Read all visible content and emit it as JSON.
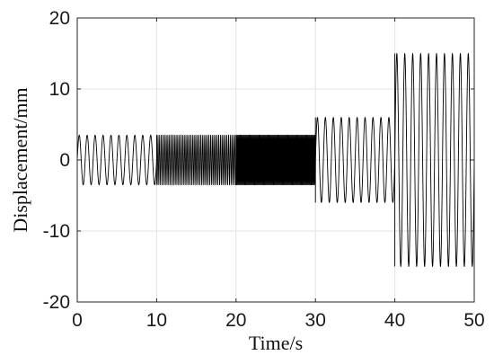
{
  "chart_data": {
    "type": "line",
    "title": "",
    "xlabel": "Time/s",
    "ylabel": "Displacement/mm",
    "xlim": [
      0,
      50
    ],
    "ylim": [
      -20,
      20
    ],
    "x_ticks": [
      0,
      10,
      20,
      30,
      40,
      50
    ],
    "y_ticks": [
      20,
      10,
      0,
      -10,
      -20
    ],
    "x_tick_labels": [
      "0",
      "10",
      "20",
      "30",
      "40",
      "50"
    ],
    "y_tick_labels": [
      "20",
      "10",
      "0",
      "-10",
      "-20"
    ],
    "grid": true,
    "legend": "none",
    "series": [
      {
        "color": "#000000",
        "segments": [
          {
            "t_start": 0,
            "t_end": 10,
            "amplitude": 3.5,
            "frequency": 1
          },
          {
            "t_start": 10,
            "t_end": 20,
            "amplitude": 3.5,
            "frequency": 4
          },
          {
            "t_start": 20,
            "t_end": 30,
            "amplitude": 3.5,
            "frequency": 8
          },
          {
            "t_start": 30,
            "t_end": 40,
            "amplitude": 6,
            "frequency": 1
          },
          {
            "t_start": 40,
            "t_end": 50,
            "amplitude": 15,
            "frequency": 1
          }
        ]
      }
    ]
  }
}
